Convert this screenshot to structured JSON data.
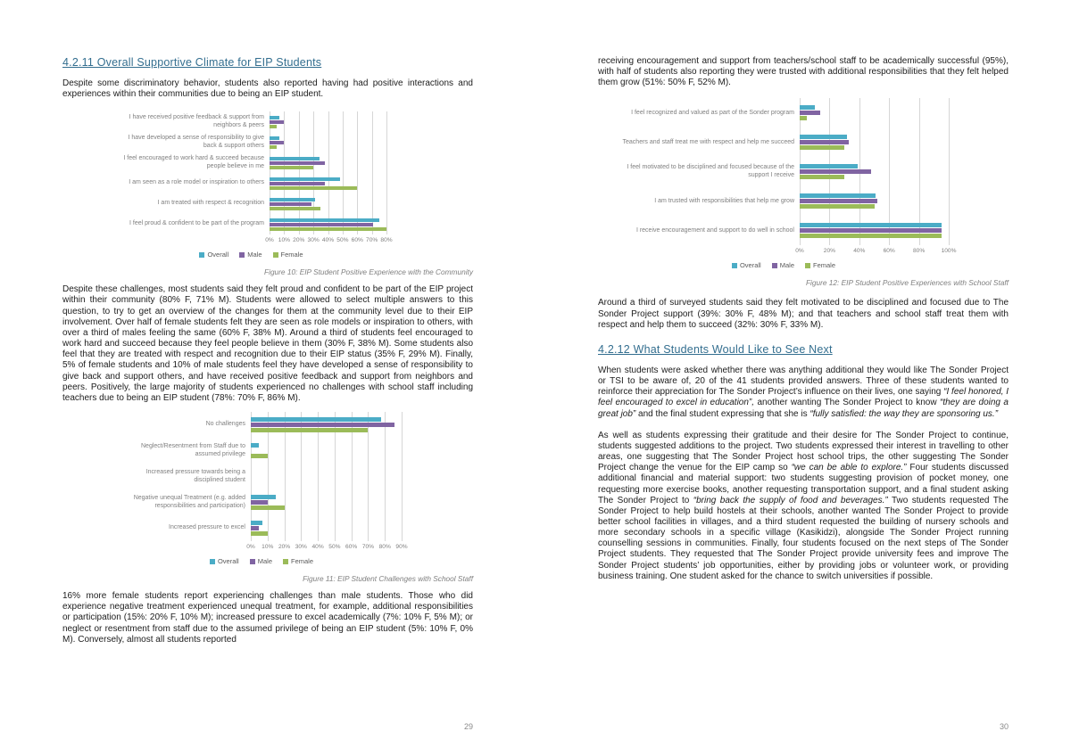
{
  "colors": {
    "heading": "#336E8F",
    "series_overall": "#4BACC6",
    "series_male": "#8064A2",
    "series_female": "#9BBB59",
    "gridline": "#D6D6D6"
  },
  "left_page": {
    "page_number": "29",
    "section_heading": "4.2.11 Overall Supportive Climate for EIP Students",
    "intro_para": "Despite some discriminatory behavior, students also reported having had positive interactions and experiences within their communities due to being an EIP student.",
    "community_para": "Despite these challenges, most students said they felt proud and confident to be part of the EIP project within their community (80% F, 71% M). Students were allowed to select multiple answers to this question, to try to get an overview of the changes for them at the community level due to their EIP involvement. Over half of female students felt they are seen as role models or inspiration to others, with over a third of males feeling the same (60% F, 38% M). Around a third of students feel encouraged to work hard and succeed because they feel people believe in them (30% F, 38% M). Some students also feel that they are treated with respect and recognition due to their EIP status (35% F, 29% M). Finally, 5% of female students and 10% of male students feel they have developed a sense of responsibility to give back and support others, and have received positive feedback and support from neighbors and peers. Positively, the large majority of students experienced no challenges with school staff including teachers due to being an EIP student (78%: 70% F, 86% M).",
    "challenges_para": "16% more female students report experiencing challenges than male students. Those who did experience negative treatment experienced unequal treatment, for example, additional responsibilities or participation (15%: 20% F, 10% M); increased pressure to excel academically (7%: 10% F, 5% M); or neglect or resentment from staff due to the assumed privilege of being an EIP student (5%: 10% F, 0% M).  Conversely, almost all students reported"
  },
  "right_page": {
    "page_number": "30",
    "continued_para": "receiving encouragement and support from teachers/school staff to be academically successful (95%), with half of students also reporting they were trusted with additional responsibilities that they felt helped them grow (51%: 50% F, 52% M).",
    "staff_para": "Around a third of surveyed students said they felt motivated to be disciplined and focused due to The Sonder Project support (39%: 30% F, 48% M); and that teachers and school staff treat them with respect and help them to succeed (32%: 30% F, 33% M).",
    "section_heading": "4.2.12 What Students Would Like to See Next",
    "next_para_rich": [
      {
        "t": "When students were asked whether there was anything additional they would like The Sonder Project or TSI to be aware of, 20 of the 41 students provided answers. Three of these students wanted to reinforce their appreciation for The Sonder Project’s influence on their lives, one saying "
      },
      {
        "t": "“I feel honored, I feel encouraged to excel in education”,",
        "i": true
      },
      {
        "t": " another wanting The Sonder Project to know "
      },
      {
        "t": "“they are doing a great job”",
        "i": true
      },
      {
        "t": " and the final student expressing that she is "
      },
      {
        "t": "“fully satisfied: the way they are sponsoring us.”",
        "i": true
      }
    ],
    "additions_para_rich": [
      {
        "t": "As well as students expressing their gratitude and their desire for The Sonder Project to continue, students suggested additions to the project. Two students expressed their interest in travelling to other areas, one suggesting that The Sonder Project host school trips, the other suggesting The Sonder Project change the venue for the EIP camp so "
      },
      {
        "t": "“we can be able to explore.”",
        "i": true
      },
      {
        "t": " Four students discussed additional financial and material support: two students suggesting provision of pocket money, one requesting more exercise books, another requesting transportation support, and a final student asking The Sonder Project to "
      },
      {
        "t": "“bring back the supply of food and beverages.”",
        "i": true
      },
      {
        "t": " Two students requested The Sonder Project to help build hostels at their schools, another wanted The Sonder Project to provide better school facilities in villages, and a third student requested the building of nursery schools and more secondary schools in a specific village (Kasikidzi), alongside The Sonder Project running counselling sessions in communities. Finally, four students focused on the next steps of The Sonder Project students. They requested that The Sonder Project provide university fees and improve The Sonder Project students’ job opportunities, either by providing jobs or volunteer work, or providing business training. One student asked for the chance to switch universities if possible."
      }
    ]
  },
  "chart_data": [
    {
      "type": "bar",
      "orientation": "horizontal",
      "grid": true,
      "legend_position": "bottom",
      "caption": "Figure 10: EIP Student Positive Experience with the Community",
      "categories": [
        "I have received positive feedback & support from neighbors & peers",
        "I have developed a sense of responsibility to give back & support others",
        "I feel encouraged to work hard & succeed because people believe in me",
        "I am seen as a role model or inspiration to others",
        "I am treated with respect & recognition",
        "I feel proud & confident to be part of the program"
      ],
      "series": [
        {
          "name": "Overall",
          "color": "#4BACC6",
          "values": [
            7,
            7,
            34,
            48,
            31,
            75
          ]
        },
        {
          "name": "Male",
          "color": "#8064A2",
          "values": [
            10,
            10,
            38,
            38,
            29,
            71
          ]
        },
        {
          "name": "Female",
          "color": "#9BBB59",
          "values": [
            5,
            5,
            30,
            60,
            35,
            80
          ]
        }
      ],
      "xlim": [
        0,
        80
      ],
      "tick_values": [
        0,
        10,
        20,
        30,
        40,
        50,
        60,
        70,
        80
      ],
      "ticks": [
        "0%",
        "10%",
        "20%",
        "30%",
        "40%",
        "50%",
        "60%",
        "70%",
        "80%"
      ]
    },
    {
      "type": "bar",
      "orientation": "horizontal",
      "grid": true,
      "legend_position": "bottom",
      "caption": "Figure 11: EIP Student Challenges with School Staff",
      "categories": [
        "No challenges",
        "Neglect/Resentment from Staff due to assumed privilege",
        "Increased pressure towards being a disciplined student",
        "Negative unequal Treatment (e.g. added responsibilities and participation)",
        "Increased pressure to excel"
      ],
      "series": [
        {
          "name": "Overall",
          "color": "#4BACC6",
          "values": [
            78,
            5,
            0,
            15,
            7
          ]
        },
        {
          "name": "Male",
          "color": "#8064A2",
          "values": [
            86,
            0,
            0,
            10,
            5
          ]
        },
        {
          "name": "Female",
          "color": "#9BBB59",
          "values": [
            70,
            10,
            0,
            20,
            10
          ]
        }
      ],
      "xlim": [
        0,
        90
      ],
      "tick_values": [
        0,
        10,
        20,
        30,
        40,
        50,
        60,
        70,
        80,
        90
      ],
      "ticks": [
        "0%",
        "10%",
        "20%",
        "30%",
        "40%",
        "50%",
        "60%",
        "70%",
        "80%",
        "90%"
      ]
    },
    {
      "type": "bar",
      "orientation": "horizontal",
      "grid": true,
      "legend_position": "bottom",
      "caption": "Figure 12: EIP Student Positive Experiences with School Staff",
      "categories": [
        "I feel recognized and valued as part of the Sonder program",
        "Teachers and staff treat me with respect and help me succeed",
        "I feel motivated to be disciplined and focused because of the support I receive",
        "I am trusted with responsibilities that help me grow",
        "I receive encouragement and support to do well in school"
      ],
      "series": [
        {
          "name": "Overall",
          "color": "#4BACC6",
          "values": [
            10,
            32,
            39,
            51,
            95
          ]
        },
        {
          "name": "Male",
          "color": "#8064A2",
          "values": [
            14,
            33,
            48,
            52,
            95
          ]
        },
        {
          "name": "Female",
          "color": "#9BBB59",
          "values": [
            5,
            30,
            30,
            50,
            95
          ]
        }
      ],
      "xlim": [
        0,
        100
      ],
      "tick_values": [
        0,
        20,
        40,
        60,
        80,
        100
      ],
      "ticks": [
        "0%",
        "20%",
        "40%",
        "60%",
        "80%",
        "100%"
      ]
    }
  ]
}
